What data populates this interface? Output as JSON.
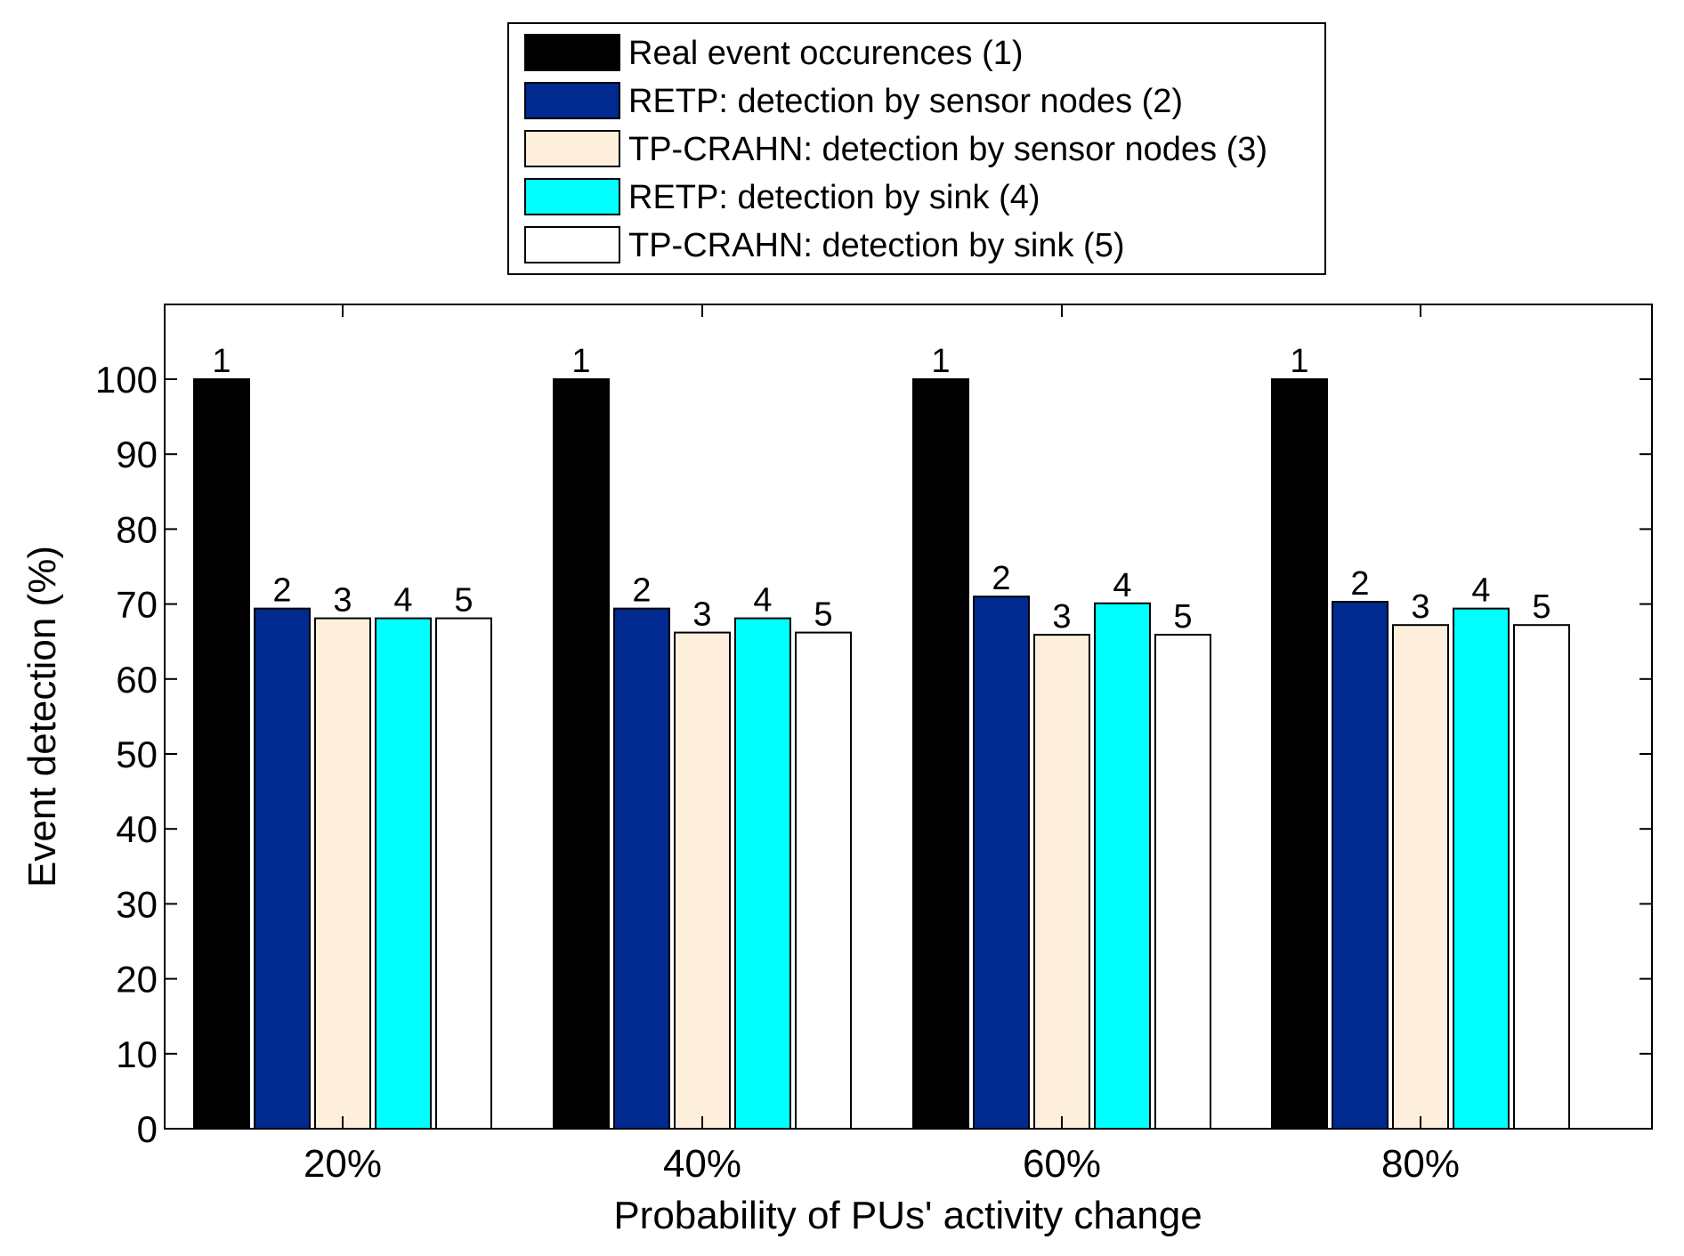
{
  "chart_data": {
    "type": "bar",
    "categories": [
      "20%",
      "40%",
      "60%",
      "80%"
    ],
    "xlabel": "Probability of PUs' activity change",
    "ylabel": "Event detection (%)",
    "ylim": [
      0,
      110
    ],
    "yticks": [
      0,
      10,
      20,
      30,
      40,
      50,
      60,
      70,
      80,
      90,
      100
    ],
    "grid": false,
    "legend_position": "top-center",
    "series": [
      {
        "name": "Real event occurences (1)",
        "label": "1",
        "color": "#000000",
        "values": [
          100,
          100,
          100,
          100
        ]
      },
      {
        "name": "RETP: detection by sensor nodes (2)",
        "label": "2",
        "color": "#002a8f",
        "values": [
          69.4,
          69.4,
          71.0,
          70.3
        ]
      },
      {
        "name": "TP-CRAHN: detection by sensor nodes (3)",
        "label": "3",
        "color": "#fdefdc",
        "values": [
          68.1,
          66.2,
          65.9,
          67.2
        ]
      },
      {
        "name": "RETP: detection by sink (4)",
        "label": "4",
        "color": "#00ffff",
        "values": [
          68.1,
          68.1,
          70.1,
          69.4
        ]
      },
      {
        "name": "TP-CRAHN: detection by sink (5)",
        "label": "5",
        "color": "#ffffff",
        "values": [
          68.1,
          66.2,
          65.9,
          67.2
        ]
      }
    ]
  }
}
